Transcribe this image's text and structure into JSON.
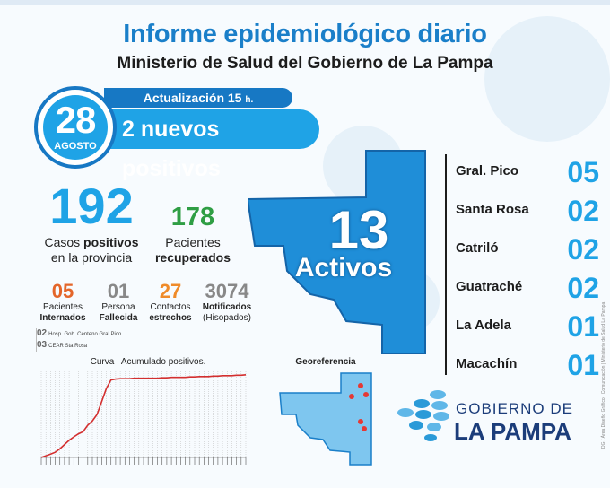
{
  "header": {
    "title": "Informe epidemiológico diario",
    "subtitle": "Ministerio de Salud del Gobierno de La Pampa"
  },
  "side_credit": "DG / Área Diseño Gráfico | Comunicación | Ministerio de Salud La Pampa",
  "date": {
    "day": "28",
    "month": "AGOSTO"
  },
  "update": {
    "label": "Actualización 15",
    "unit": "h."
  },
  "new_positives": "2 nuevos positivos",
  "totals": {
    "positives": {
      "value": "192",
      "label_prefix": "Casos ",
      "label_bold": "positivos",
      "label_suffix": "en la provincia"
    },
    "recovered": {
      "value": "178",
      "label_top": "Pacientes",
      "label_bold": "recuperados"
    }
  },
  "stats": [
    {
      "value": "05",
      "line1": "Pacientes",
      "line2": "Internados",
      "color": "#e4662a"
    },
    {
      "value": "01",
      "line1": "Persona",
      "line2": "Fallecida",
      "color": "#888888"
    },
    {
      "value": "27",
      "line1": "Contactos",
      "line2": "estrechos",
      "color": "#ef8b2a"
    },
    {
      "value": "3074",
      "line1": "Notificados",
      "line2": "(Hisopados)",
      "color": "#888888"
    }
  ],
  "hospitals": [
    {
      "count": "02",
      "name": "Hosp. Gob. Centeno Gral Pico"
    },
    {
      "count": "03",
      "name": "CEAR Sta.Rosa"
    }
  ],
  "map": {
    "value": "13",
    "label": "Activos"
  },
  "localities": [
    {
      "name": "Gral. Pico",
      "value": "05"
    },
    {
      "name": "Santa Rosa",
      "value": "02"
    },
    {
      "name": "Catriló",
      "value": "02"
    },
    {
      "name": "Guatraché",
      "value": "02"
    },
    {
      "name": "La Adela",
      "value": "01"
    },
    {
      "name": "Macachín",
      "value": "01"
    }
  ],
  "georef": {
    "title": "Georeferencia"
  },
  "logo": {
    "line1": "GOBIERNO DE",
    "line2": "LA PAMPA"
  },
  "chart_title": "Curva | Acumulado positivos.",
  "chart_data": {
    "type": "line",
    "title": "Curva | Acumulado positivos.",
    "ylim": [
      0,
      200
    ],
    "series": [
      {
        "values": [
          0,
          4,
          8,
          12,
          20,
          30,
          40,
          48,
          55,
          60,
          75,
          85,
          100,
          130,
          160,
          180,
          182,
          183,
          183,
          183,
          184,
          184,
          184,
          184,
          184,
          184,
          185,
          185,
          186,
          186,
          186,
          186,
          187,
          187,
          188,
          188,
          188,
          189,
          189,
          190,
          190,
          190,
          191,
          191,
          192
        ]
      }
    ],
    "color": "#d32f2f",
    "grid": true
  }
}
